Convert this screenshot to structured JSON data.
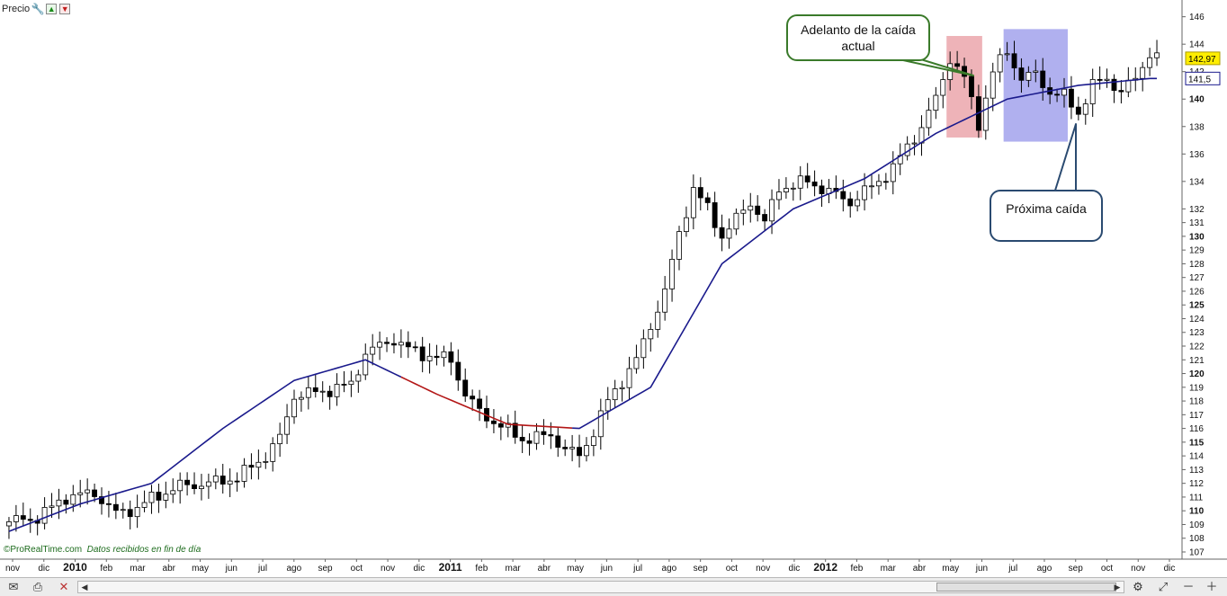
{
  "toolbar": {
    "label": "Precio"
  },
  "footnote": {
    "brand": "ProRealTime.com",
    "note": "Datos recibidos en fin de día"
  },
  "annotations": {
    "left_bubble": "Adelanto de la caída actual",
    "right_bubble": "Próxima caída"
  },
  "colors": {
    "ma_up": "#1a1a8c",
    "ma_down": "#b31616",
    "candle_up": "#ffffff",
    "candle_down": "#000000",
    "highlight_red": "#e89aa0",
    "highlight_blue": "#8f8fe8",
    "price_badge": "#ffee00"
  },
  "chart_data": {
    "type": "candlestick",
    "ylim": [
      107,
      146.5
    ],
    "y_ticks": [
      "146",
      "144",
      "142",
      "140",
      "138",
      "136",
      "134",
      "132",
      "131",
      "130",
      "129",
      "128",
      "127",
      "126",
      "125",
      "124",
      "123",
      "122",
      "121",
      "120",
      "119",
      "118",
      "117",
      "116",
      "115",
      "114",
      "113",
      "112",
      "111",
      "110",
      "109",
      "108",
      "107"
    ],
    "y_ticks_bold": [
      "140",
      "130",
      "125",
      "120",
      "115",
      "110"
    ],
    "x_months": [
      "nov",
      "dic",
      "2010",
      "feb",
      "mar",
      "abr",
      "may",
      "jun",
      "jul",
      "ago",
      "sep",
      "oct",
      "nov",
      "dic",
      "2011",
      "feb",
      "mar",
      "abr",
      "may",
      "jun",
      "jul",
      "ago",
      "sep",
      "oct",
      "nov",
      "dic",
      "2012",
      "feb",
      "mar",
      "abr",
      "may",
      "jun",
      "jul",
      "ago",
      "sep",
      "oct",
      "nov",
      "dic"
    ],
    "x_months_bold": [
      "2010",
      "2011",
      "2012"
    ],
    "last_price": "142,97",
    "ma_value": "141,5",
    "price_path": [
      [
        0,
        109.2
      ],
      [
        4,
        109.5
      ],
      [
        8,
        111
      ],
      [
        12,
        111.3
      ],
      [
        15,
        109.8
      ],
      [
        18,
        110.2
      ],
      [
        20,
        110.9
      ],
      [
        24,
        111.8
      ],
      [
        28,
        112
      ],
      [
        32,
        112.4
      ],
      [
        36,
        114
      ],
      [
        38,
        115.3
      ],
      [
        40,
        118.4
      ],
      [
        44,
        118.7
      ],
      [
        48,
        119.2
      ],
      [
        50,
        121.5
      ],
      [
        54,
        122.5
      ],
      [
        56,
        121.8
      ],
      [
        58,
        121.4
      ],
      [
        62,
        121
      ],
      [
        64,
        118.5
      ],
      [
        66,
        117.2
      ],
      [
        68,
        116.5
      ],
      [
        72,
        115.2
      ],
      [
        76,
        115.5
      ],
      [
        78,
        114.5
      ],
      [
        80,
        114
      ],
      [
        82,
        115.8
      ],
      [
        84,
        118
      ],
      [
        86,
        119.5
      ],
      [
        88,
        121
      ],
      [
        90,
        123.5
      ],
      [
        92,
        126
      ],
      [
        94,
        130.2
      ],
      [
        96,
        133.5
      ],
      [
        98,
        132
      ],
      [
        100,
        130
      ],
      [
        104,
        132.5
      ],
      [
        106,
        131
      ],
      [
        108,
        133.5
      ],
      [
        112,
        134
      ],
      [
        116,
        133
      ],
      [
        118,
        132.5
      ],
      [
        122,
        134
      ],
      [
        124,
        135
      ],
      [
        126,
        136.5
      ],
      [
        128,
        138
      ],
      [
        130,
        140
      ],
      [
        132,
        143
      ],
      [
        134,
        141.5
      ],
      [
        136,
        138.2
      ],
      [
        138,
        142
      ],
      [
        140,
        143.5
      ],
      [
        142,
        141.5
      ],
      [
        144,
        141.8
      ],
      [
        146,
        140.5
      ],
      [
        148,
        140.2
      ],
      [
        150,
        139
      ],
      [
        152,
        141
      ],
      [
        154,
        141.5
      ],
      [
        156,
        140.5
      ],
      [
        158,
        141.5
      ],
      [
        160,
        143.4
      ],
      [
        161,
        142.97
      ]
    ],
    "ma_points": [
      [
        0,
        108.5
      ],
      [
        10,
        110.5
      ],
      [
        20,
        112
      ],
      [
        30,
        116
      ],
      [
        40,
        119.5
      ],
      [
        50,
        121
      ],
      [
        60,
        118.5
      ],
      [
        70,
        116.3
      ],
      [
        80,
        116
      ],
      [
        90,
        119
      ],
      [
        100,
        128
      ],
      [
        110,
        132
      ],
      [
        120,
        134.2
      ],
      [
        130,
        137.5
      ],
      [
        140,
        140
      ],
      [
        150,
        141
      ],
      [
        160,
        141.5
      ]
    ],
    "ma_red_range": [
      55,
      79
    ],
    "highlight_red": [
      132,
      136
    ],
    "highlight_blue": [
      140,
      148
    ]
  }
}
